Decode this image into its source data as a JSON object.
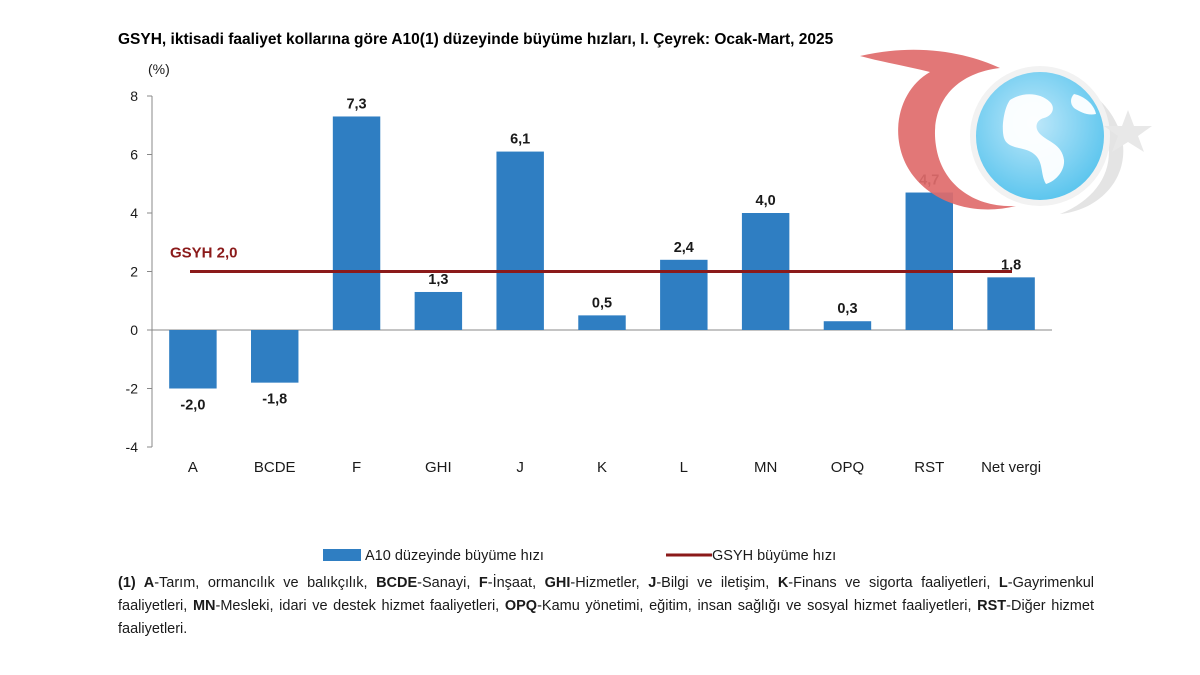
{
  "title": "GSYH, iktisadi faaliyet kollarına göre A10(1) düzeyinde büyüme hızları, I. Çeyrek: Ocak-Mart, 2025",
  "colors": {
    "bar": "#2f7ec2",
    "reference": "#8b1a1a",
    "axis": "#888888"
  },
  "chart_data": {
    "type": "bar",
    "title": "GSYH, iktisadi faaliyet kollarına göre A10(1) düzeyinde büyüme hızları, I. Çeyrek: Ocak-Mart, 2025",
    "ylabel": "(%)",
    "ylim": [
      -4,
      8
    ],
    "yticks": [
      8,
      6,
      4,
      2,
      0,
      -2,
      -4
    ],
    "categories": [
      "A",
      "BCDE",
      "F",
      "GHI",
      "J",
      "K",
      "L",
      "MN",
      "OPQ",
      "RST",
      "Net vergi"
    ],
    "series": [
      {
        "name": "A10 düzeyinde büyüme hızı",
        "values": [
          -2.0,
          -1.8,
          7.3,
          1.3,
          6.1,
          0.5,
          2.4,
          4.0,
          0.3,
          4.7,
          1.8
        ],
        "labels": [
          "-2,0",
          "-1,8",
          "7,3",
          "1,3",
          "6,1",
          "0,5",
          "2,4",
          "4,0",
          "0,3",
          "4,7",
          "1,8"
        ]
      }
    ],
    "reference_line": {
      "name": "GSYH büyüme hızı",
      "value": 2.0,
      "label": "GSYH 2,0"
    },
    "legend": {
      "placement": "bottom",
      "bar_label": "A10 düzeyinde büyüme hızı",
      "line_label": "GSYH büyüme hızı"
    }
  },
  "footnote": [
    {
      "t": "(1) ",
      "b": true
    },
    {
      "t": "A",
      "b": true
    },
    {
      "t": "-Tarım, ormancılık ve balıkçılık, ",
      "b": false
    },
    {
      "t": "BCDE",
      "b": true
    },
    {
      "t": "-Sanayi, ",
      "b": false
    },
    {
      "t": "F",
      "b": true
    },
    {
      "t": "-İnşaat, ",
      "b": false
    },
    {
      "t": "GHI",
      "b": true
    },
    {
      "t": "-Hizmetler, ",
      "b": false
    },
    {
      "t": "J",
      "b": true
    },
    {
      "t": "-Bilgi ve iletişim, ",
      "b": false
    },
    {
      "t": "K",
      "b": true
    },
    {
      "t": "-Finans ve sigorta faaliyetleri, ",
      "b": false
    },
    {
      "t": "L",
      "b": true
    },
    {
      "t": "-Gayrimenkul faaliyetleri, ",
      "b": false
    },
    {
      "t": "MN",
      "b": true
    },
    {
      "t": "-Mesleki, idari ve destek hizmet faaliyetleri, ",
      "b": false
    },
    {
      "t": "OPQ",
      "b": true
    },
    {
      "t": "-Kamu yönetimi, eğitim, insan sağlığı ve sosyal hizmet faaliyetleri, ",
      "b": false
    },
    {
      "t": "RST",
      "b": true
    },
    {
      "t": "-Diğer hizmet faaliyetleri.",
      "b": false
    }
  ],
  "logo": {
    "icon": "crescent-star-globe-icon"
  }
}
